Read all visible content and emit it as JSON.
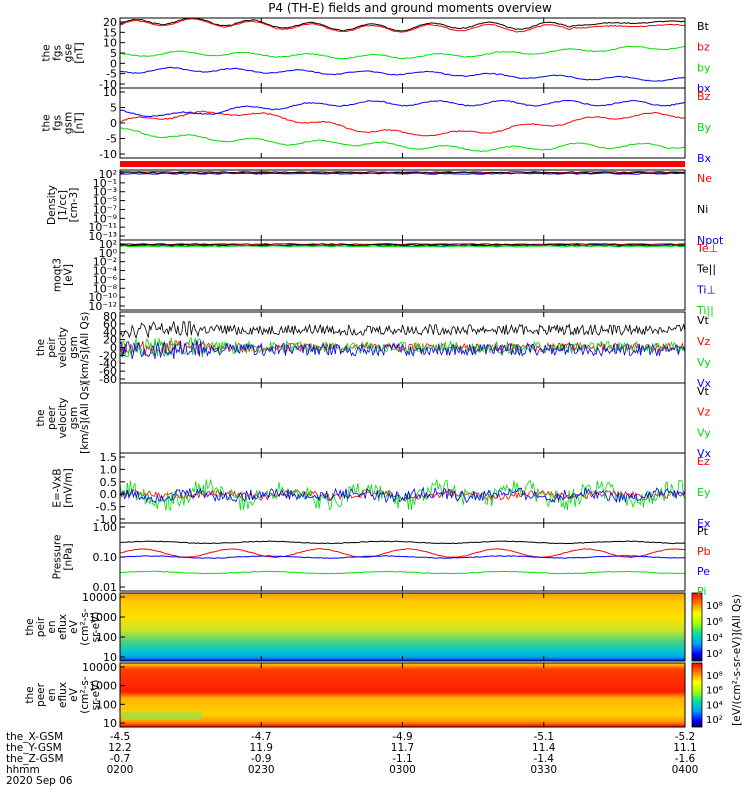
{
  "title": "P4 (TH-E) fields and ground moments overview",
  "colors": {
    "black": "#000000",
    "red": "#ff0000",
    "green": "#00e000",
    "blue": "#0000ff"
  },
  "chart_data": [
    {
      "type": "line",
      "id": "fgs-gse",
      "ylabel_lines": [
        "the",
        "fgs",
        "gse",
        "[nT]"
      ],
      "yticks": [
        "20",
        "15",
        "10",
        "5",
        "0",
        "-5",
        "-10"
      ],
      "ylim": [
        -10,
        20
      ],
      "series": [
        {
          "name": "Bt",
          "color": "black",
          "x": [
            0,
            0.1,
            0.2,
            0.3,
            0.4,
            0.5,
            0.6,
            0.7,
            0.8,
            0.9,
            1
          ],
          "y": [
            17.5,
            19,
            18,
            17,
            16,
            16,
            17,
            16.5,
            17,
            18,
            18.5
          ]
        },
        {
          "name": "bz",
          "color": "red",
          "x": [
            0,
            0.1,
            0.2,
            0.3,
            0.4,
            0.5,
            0.6,
            0.7,
            0.8,
            0.9,
            1
          ],
          "y": [
            17,
            18.5,
            17.5,
            16.5,
            15.5,
            15.5,
            16,
            15.5,
            16,
            16.5,
            17
          ]
        },
        {
          "name": "by",
          "color": "green",
          "x": [
            0,
            0.1,
            0.2,
            0.3,
            0.4,
            0.5,
            0.6,
            0.7,
            0.8,
            0.9,
            1
          ],
          "y": [
            4,
            5,
            4.5,
            4,
            3.5,
            3.5,
            4,
            5,
            6,
            7,
            7.5
          ]
        },
        {
          "name": "bx",
          "color": "blue",
          "x": [
            0,
            0.1,
            0.2,
            0.3,
            0.4,
            0.5,
            0.6,
            0.7,
            0.8,
            0.9,
            1
          ],
          "y": [
            -3,
            -2,
            -2.5,
            -3,
            -3.5,
            -3.5,
            -4,
            -5,
            -5.5,
            -6,
            -6.5
          ]
        }
      ]
    },
    {
      "type": "line",
      "id": "fgs-gsm",
      "ylabel_lines": [
        "the",
        "fgs",
        "gsm",
        "[nT]"
      ],
      "yticks": [
        "10",
        "5",
        "0",
        "-5",
        "-10"
      ],
      "ylim": [
        -13,
        10
      ],
      "series": [
        {
          "name": "Bz",
          "color": "red",
          "x": [
            0,
            0.1,
            0.2,
            0.3,
            0.4,
            0.5,
            0.6,
            0.7,
            0.8,
            0.9,
            1
          ],
          "y": [
            -1,
            1,
            2,
            0,
            -3,
            -5,
            -5,
            -3,
            -1,
            1,
            1
          ]
        },
        {
          "name": "By",
          "color": "green",
          "x": [
            0,
            0.1,
            0.2,
            0.3,
            0.4,
            0.5,
            0.6,
            0.7,
            0.8,
            0.9,
            1
          ],
          "y": [
            -4,
            -6,
            -7,
            -8,
            -8,
            -9,
            -10,
            -10,
            -9,
            -9,
            -9
          ]
        },
        {
          "name": "Bx",
          "color": "blue",
          "x": [
            0,
            0.1,
            0.2,
            0.3,
            0.4,
            0.5,
            0.6,
            0.7,
            0.8,
            0.9,
            1
          ],
          "y": [
            2,
            1,
            3,
            4,
            5,
            5,
            5,
            5,
            5,
            5,
            5
          ]
        }
      ]
    },
    {
      "type": "line",
      "id": "density",
      "ylabel_lines": [
        "Density",
        "[1/cc]",
        "[cm-3]"
      ],
      "yticks": [
        "10^2",
        "10^-1",
        "10^-3",
        "10^-5",
        "10^-7",
        "10^-9",
        "10^-11",
        "10^-13"
      ],
      "scale": "log",
      "series": [
        {
          "name": "Ne",
          "color": "red"
        },
        {
          "name": "Ni",
          "color": "black"
        },
        {
          "name": "Npot",
          "color": "blue"
        }
      ]
    },
    {
      "type": "line",
      "id": "temperature",
      "ylabel_lines": [
        "moqt3",
        "[eV]"
      ],
      "yticks": [
        "10^2",
        "10^0",
        "10^-2",
        "10^-4",
        "10^-6",
        "10^-8",
        "10^-10",
        "10^-12"
      ],
      "scale": "log",
      "series": [
        {
          "name": "Te⊥",
          "color": "red"
        },
        {
          "name": "Te||",
          "color": "black"
        },
        {
          "name": "Ti⊥",
          "color": "blue"
        },
        {
          "name": "Ti||",
          "color": "green"
        }
      ]
    },
    {
      "type": "line",
      "id": "peir-velocity",
      "ylabel_lines": [
        "the",
        "peir",
        "velocity",
        "gsm",
        "[km/s](All Qs)"
      ],
      "yticks": [
        "80",
        "60",
        "40",
        "20",
        "0",
        "-20",
        "-40",
        "-60",
        "-80"
      ],
      "ylim": [
        -80,
        80
      ],
      "series": [
        {
          "name": "Vt",
          "color": "black"
        },
        {
          "name": "Vz",
          "color": "red"
        },
        {
          "name": "Vy",
          "color": "green"
        },
        {
          "name": "Vx",
          "color": "blue"
        }
      ]
    },
    {
      "type": "line",
      "id": "peer-velocity",
      "ylabel_lines": [
        "the",
        "peer",
        "velocity",
        "gsm",
        "[km/s](All Qs)"
      ],
      "yticks": [],
      "series": [
        {
          "name": "Vt",
          "color": "black"
        },
        {
          "name": "Vz",
          "color": "red"
        },
        {
          "name": "Vy",
          "color": "green"
        },
        {
          "name": "Vx",
          "color": "blue"
        }
      ]
    },
    {
      "type": "line",
      "id": "efield",
      "ylabel_lines": [
        "E=-VxB",
        "[mV/m]"
      ],
      "yticks": [
        "1.5",
        "1.0",
        "0.5",
        "0.0",
        "-0.5",
        "-1.0"
      ],
      "ylim": [
        -1,
        1.5
      ],
      "series": [
        {
          "name": "Ez",
          "color": "red"
        },
        {
          "name": "Ey",
          "color": "green"
        },
        {
          "name": "Ex",
          "color": "blue"
        }
      ]
    },
    {
      "type": "line",
      "id": "pressure",
      "ylabel_lines": [
        "Pressure",
        "[nPa]"
      ],
      "yticks": [
        "1.00",
        "0.10",
        "0.01"
      ],
      "scale": "log",
      "series": [
        {
          "name": "Pt",
          "color": "black",
          "value": 0.27
        },
        {
          "name": "Pb",
          "color": "red",
          "value": 0.13
        },
        {
          "name": "Pe",
          "color": "blue",
          "value": 0.1
        },
        {
          "name": "Pi",
          "color": "green",
          "value": 0.035
        }
      ]
    },
    {
      "type": "heatmap",
      "id": "peir-eflux",
      "ylabel_lines": [
        "the",
        "peir",
        "en",
        "eflux",
        "eV",
        "(cm^2-s-",
        "sr-eV)"
      ],
      "yticks": [
        "10000",
        "1000",
        "100",
        "10"
      ],
      "colorbar_ticks": [
        "10^8",
        "10^6",
        "10^4",
        "10^2"
      ],
      "colorbar_label": "[eV/(cm^2-s-sr-eV)](All Qs)"
    },
    {
      "type": "heatmap",
      "id": "peer-eflux",
      "ylabel_lines": [
        "the",
        "peer",
        "en",
        "eflux",
        "eV",
        "(cm^2-s-",
        "sr-eV)"
      ],
      "yticks": [
        "10000",
        "1000",
        "100",
        "10"
      ],
      "colorbar_ticks": [
        "10^8",
        "10^6",
        "10^4",
        "10^2"
      ],
      "colorbar_label": "[eV/(cm^2-s-sr-eV)](All Qs)"
    }
  ],
  "xaxis": {
    "row_labels": [
      "the_X-GSM",
      "the_Y-GSM",
      "the_Z-GSM",
      "hhmm",
      "2020 Sep 06"
    ],
    "columns": [
      [
        "-4.5",
        "12.2",
        "-0.7",
        "0200"
      ],
      [
        "-4.7",
        "11.9",
        "-0.9",
        "0230"
      ],
      [
        "-4.9",
        "11.7",
        "-1.1",
        "0300"
      ],
      [
        "-5.1",
        "11.4",
        "-1.4",
        "0330"
      ],
      [
        "-5.2",
        "11.1",
        "-1.6",
        "0400"
      ]
    ]
  }
}
